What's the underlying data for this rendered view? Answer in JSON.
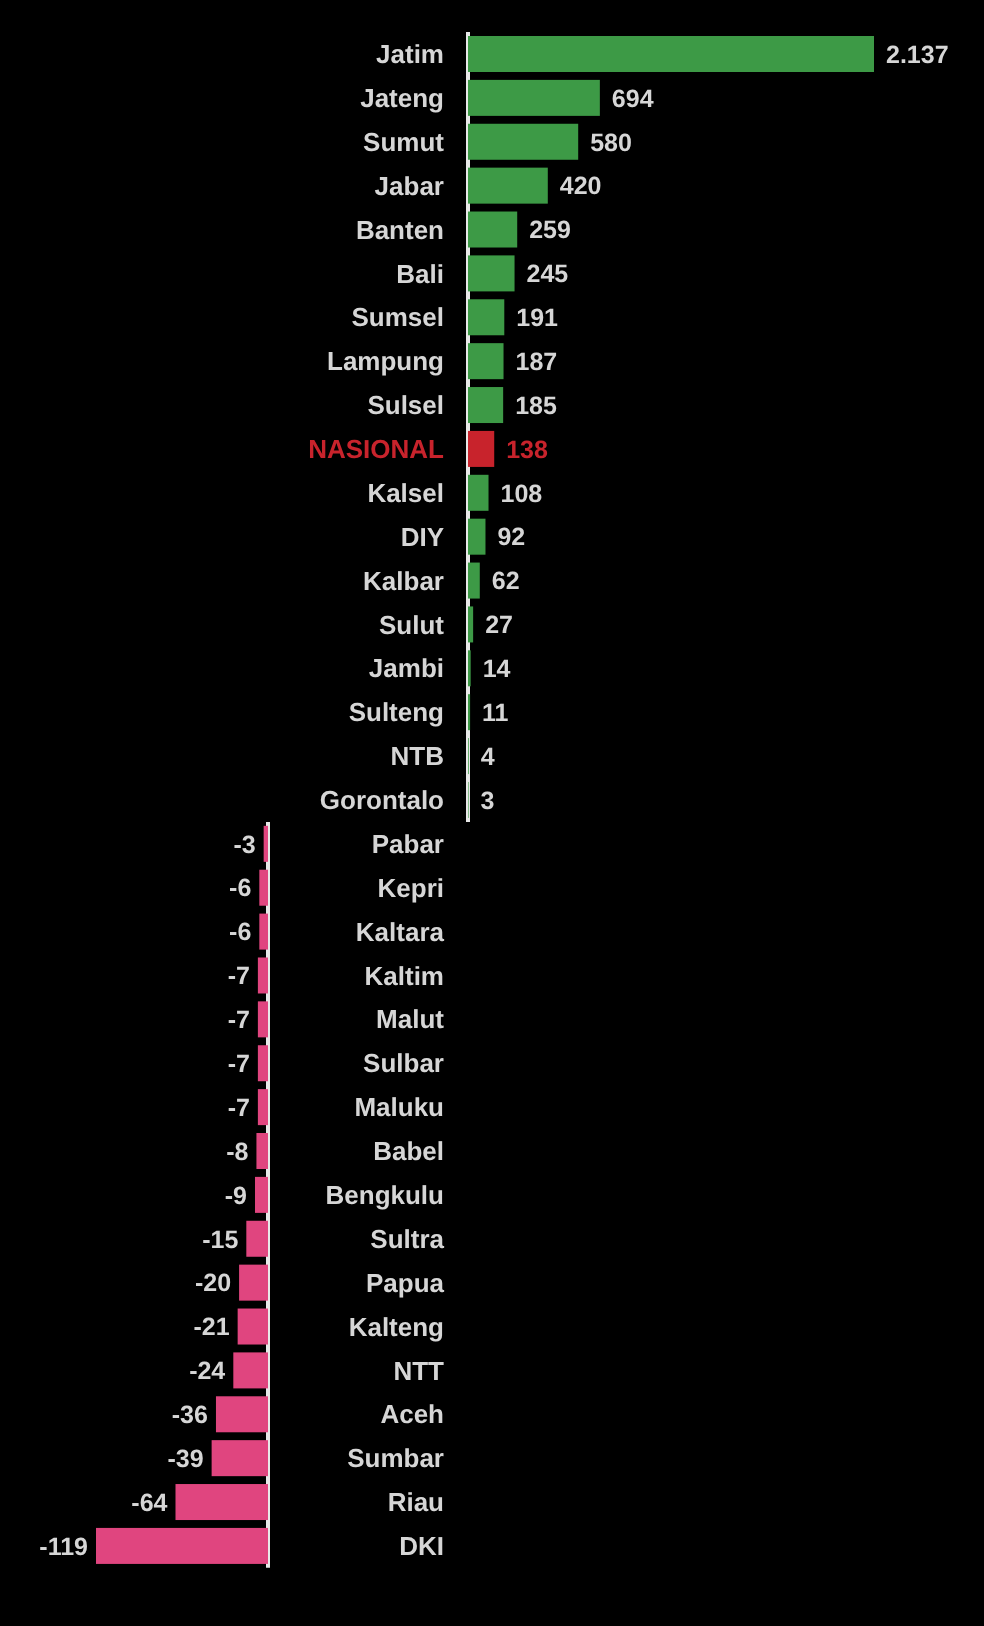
{
  "chart_data": [
    {
      "type": "bar",
      "orientation": "horizontal",
      "tick_labels": "y",
      "xlim": [
        0,
        2137
      ],
      "categories": [
        "Jatim",
        "Jateng",
        "Sumut",
        "Jabar",
        "Banten",
        "Bali",
        "Sumsel",
        "Lampung",
        "Sulsel",
        "NASIONAL",
        "Kalsel",
        "DIY",
        "Kalbar",
        "Sulut",
        "Jambi",
        "Sulteng",
        "NTB",
        "Gorontalo"
      ],
      "values": [
        2137,
        694,
        580,
        420,
        259,
        245,
        191,
        187,
        185,
        138,
        108,
        92,
        62,
        27,
        14,
        11,
        4,
        3
      ],
      "value_labels": [
        "2.137",
        "694",
        "580",
        "420",
        "259",
        "245",
        "191",
        "187",
        "185",
        "138",
        "108",
        "92",
        "62",
        "27",
        "14",
        "11",
        "4",
        "3"
      ],
      "colors": [
        "#3d9a46",
        "#3d9a46",
        "#3d9a46",
        "#3d9a46",
        "#3d9a46",
        "#3d9a46",
        "#3d9a46",
        "#3d9a46",
        "#3d9a46",
        "#c8232c",
        "#3d9a46",
        "#3d9a46",
        "#3d9a46",
        "#3d9a46",
        "#3d9a46",
        "#3d9a46",
        "#3d9a46",
        "#3d9a46"
      ]
    },
    {
      "type": "bar",
      "orientation": "horizontal",
      "tick_labels": "y",
      "xlim": [
        -119,
        0
      ],
      "categories": [
        "Pabar",
        "Kepri",
        "Kaltara",
        "Kaltim",
        "Malut",
        "Sulbar",
        "Maluku",
        "Babel",
        "Bengkulu",
        "Sultra",
        "Papua",
        "Kalteng",
        "NTT",
        "Aceh",
        "Sumbar",
        "Riau",
        "DKI"
      ],
      "values": [
        -3,
        -6,
        -6,
        -7,
        -7,
        -7,
        -7,
        -8,
        -9,
        -15,
        -20,
        -21,
        -24,
        -36,
        -39,
        -64,
        -119
      ],
      "value_labels": [
        "-3",
        "-6",
        "-6",
        "-7",
        "-7",
        "-7",
        "-7",
        "-8",
        "-9",
        "-15",
        "-20",
        "-21",
        "-24",
        "-36",
        "-39",
        "-64",
        "-119"
      ],
      "colors": [
        "#e0457f",
        "#e0457f",
        "#e0457f",
        "#e0457f",
        "#e0457f",
        "#e0457f",
        "#e0457f",
        "#e0457f",
        "#e0457f",
        "#e0457f",
        "#e0457f",
        "#e0457f",
        "#e0457f",
        "#e0457f",
        "#e0457f",
        "#e0457f",
        "#e0457f"
      ]
    }
  ]
}
